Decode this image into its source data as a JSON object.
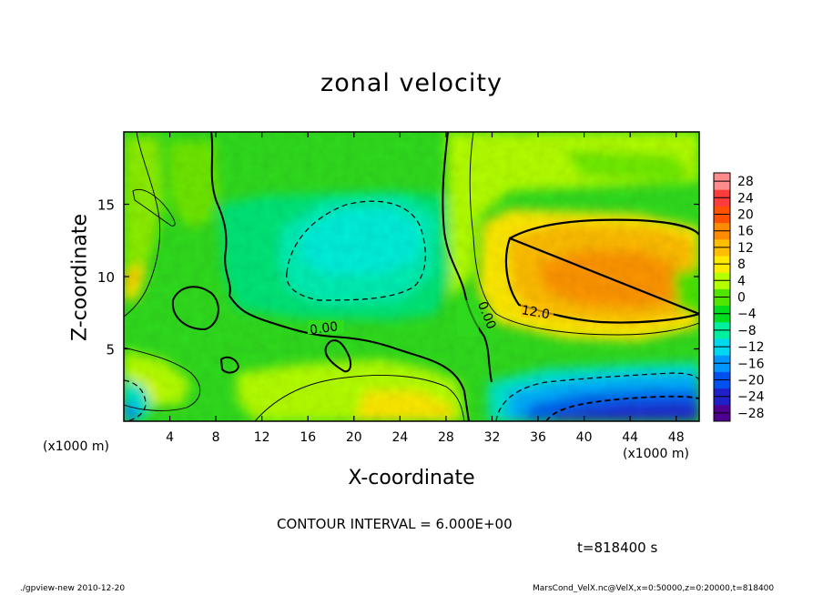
{
  "chart_data": {
    "type": "heatmap",
    "title": "zonal velocity",
    "xlabel": "X-coordinate",
    "ylabel": "Z-coordinate",
    "x_unit_label": "(x1000 m)",
    "x_ticks": [
      4,
      8,
      12,
      16,
      20,
      24,
      28,
      32,
      36,
      40,
      44,
      48
    ],
    "y_ticks": [
      5,
      10,
      15
    ],
    "xlim": [
      0,
      50
    ],
    "ylim": [
      0,
      20
    ],
    "colorbar": {
      "ticks": [
        28,
        24,
        20,
        16,
        12,
        8,
        4,
        0,
        -4,
        -8,
        -12,
        -16,
        -20,
        -24,
        -28
      ],
      "tick_labels": [
        "28",
        "24",
        "20",
        "16",
        "12",
        "8",
        "4",
        "0",
        "−4",
        "−8",
        "−12",
        "−16",
        "−20",
        "−24",
        "−28"
      ],
      "range": [
        -30,
        30
      ],
      "colors": [
        "#500090",
        "#2020c8",
        "#0050f0",
        "#0096ff",
        "#00d8f0",
        "#00f0a0",
        "#00dc1e",
        "#50e600",
        "#b4ff00",
        "#ffeb00",
        "#ffbe00",
        "#ff8c00",
        "#ff5000",
        "#ff3c3c",
        "#ff8c8c"
      ]
    },
    "contour_interval_text": "CONTOUR INTERVAL = 6.000E+00",
    "contour_labels": [
      "0.00",
      "0.00",
      "12.0"
    ],
    "time_label": "t=818400 s",
    "footer_left": "./gpview-new  2010-12-20",
    "footer_right": "MarsCond_VelX.nc@VelX,x=0:50000,z=0:20000,t=818400"
  }
}
